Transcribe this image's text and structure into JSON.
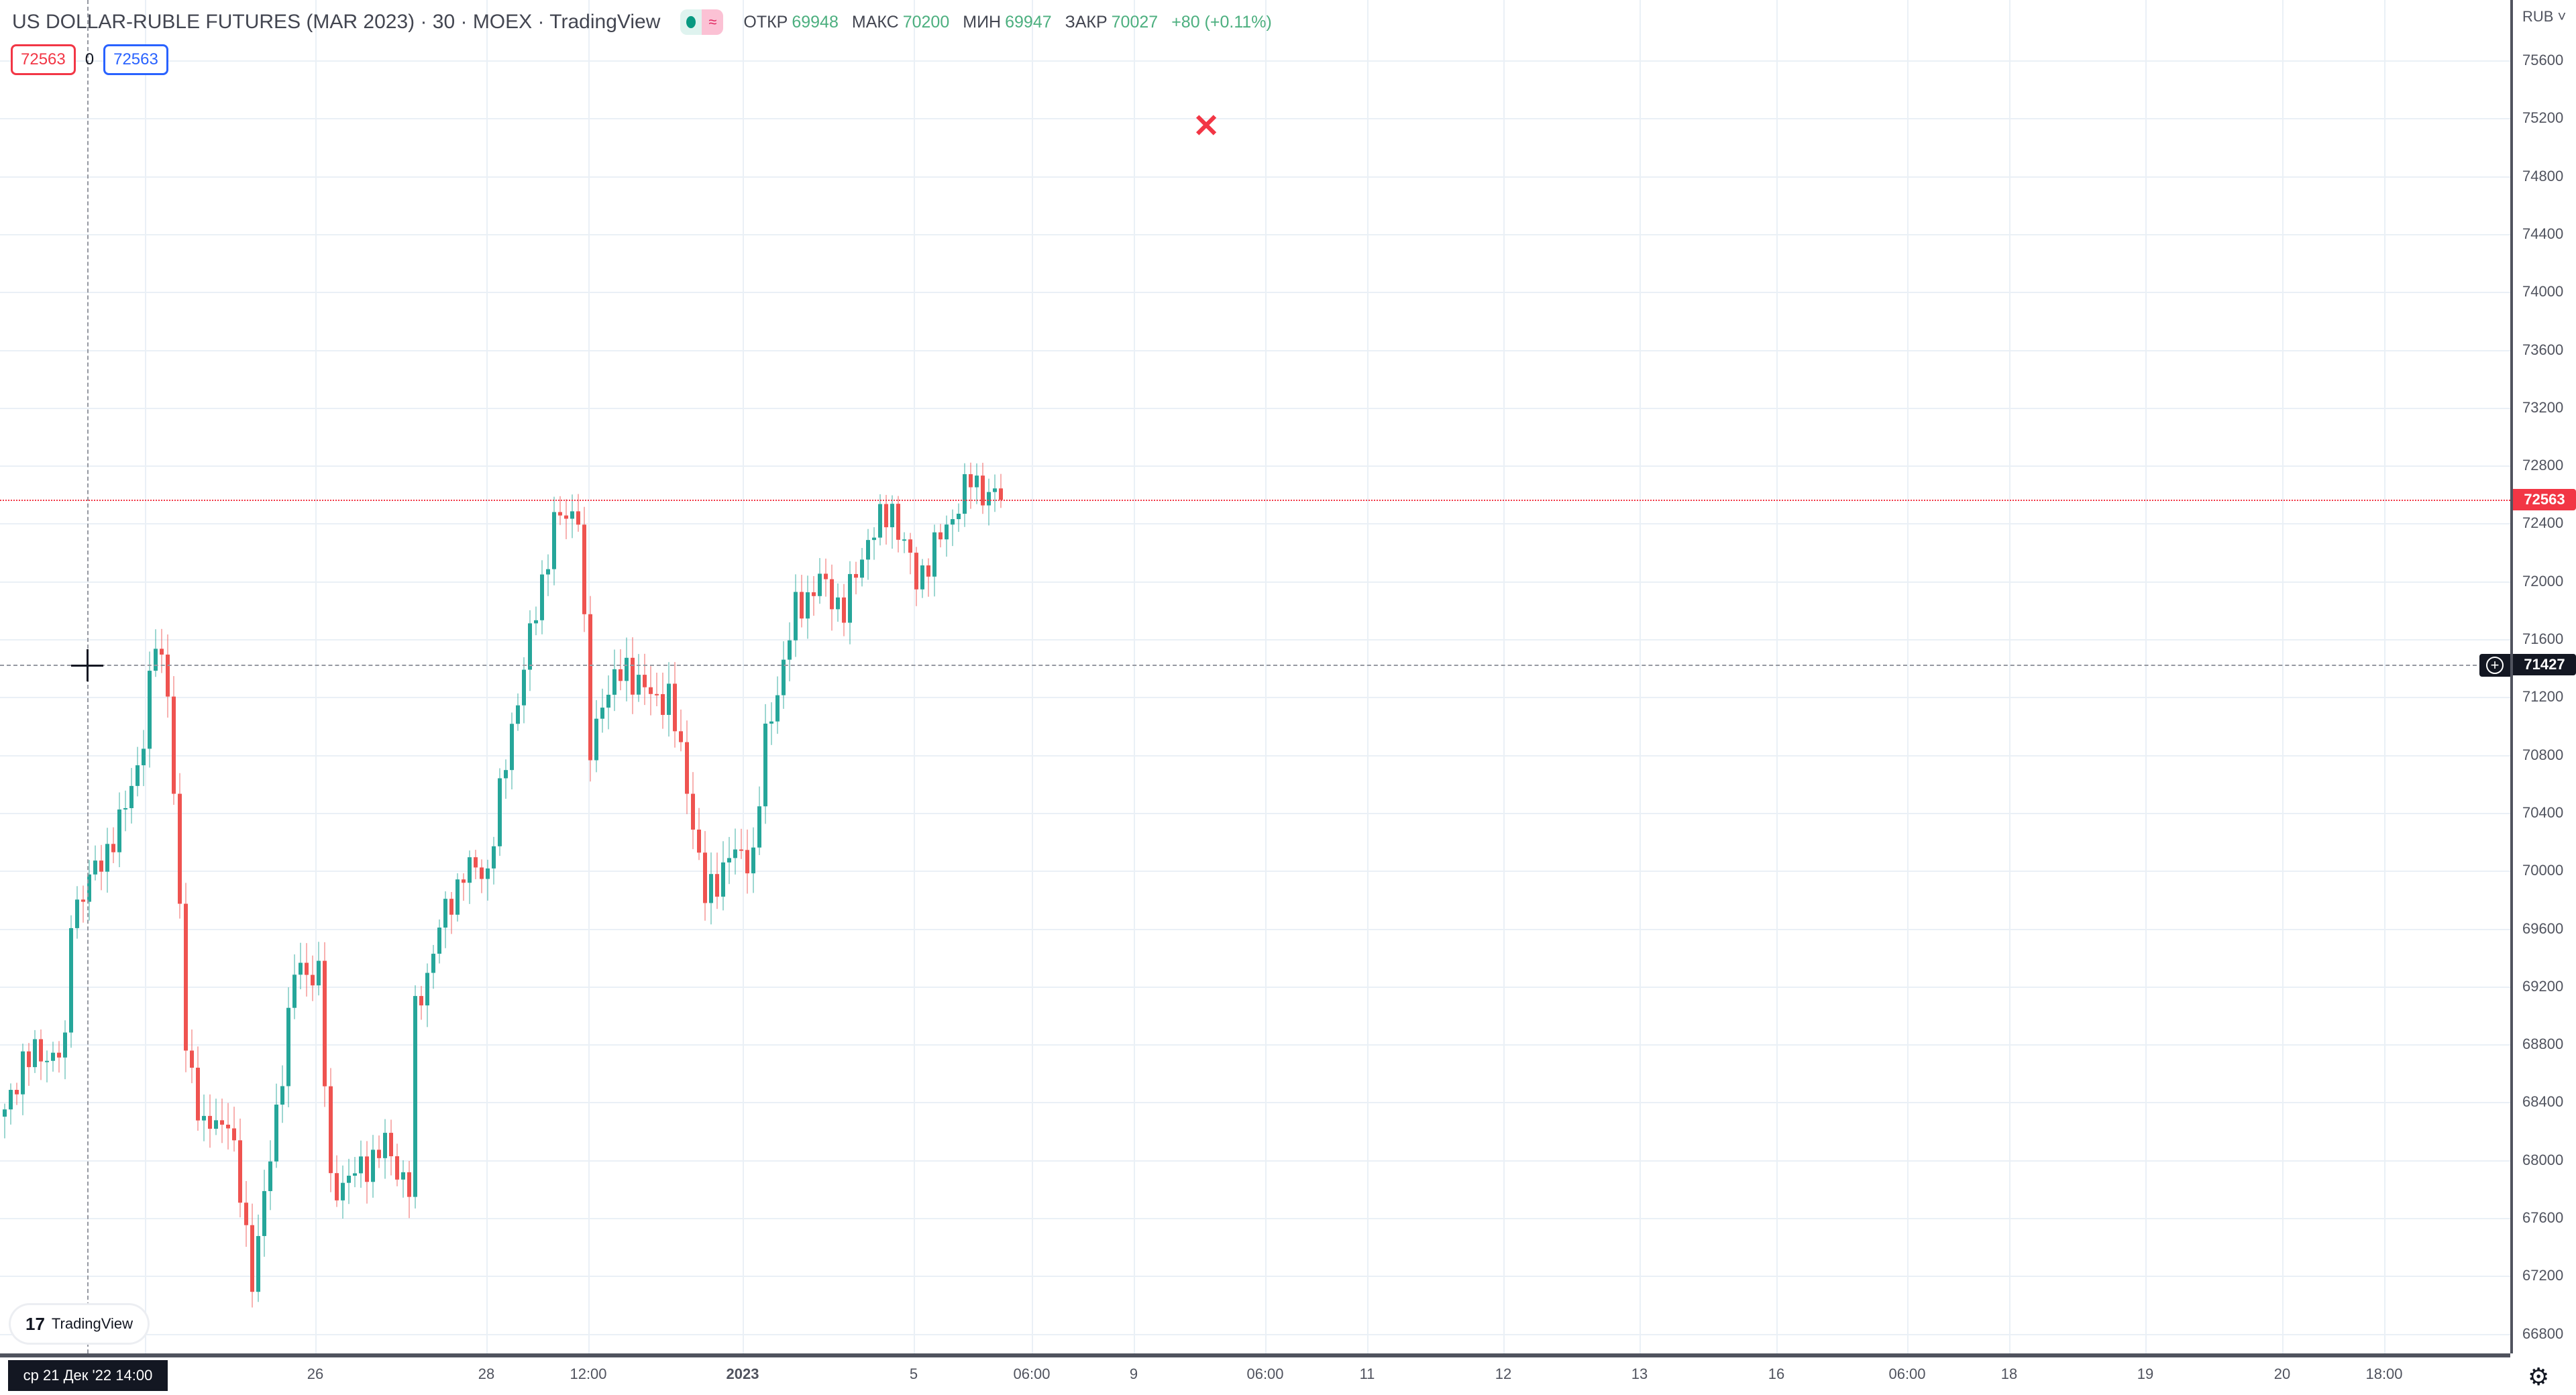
{
  "header": {
    "title": "US DOLLAR-RUBLE FUTURES (MAR 2023) · 30 · MOEX · TradingView",
    "status_icon": "market-open-dot",
    "delay_icon": "wave-icon",
    "delay_glyph": "≈",
    "ohlc": [
      {
        "label": "ОТКР",
        "value": "69948"
      },
      {
        "label": "МАКС",
        "value": "70200"
      },
      {
        "label": "МИН",
        "value": "69947"
      },
      {
        "label": "ЗАКР",
        "value": "70027"
      }
    ],
    "change": "+80 (+0.11%)"
  },
  "badges": {
    "sell": "72563",
    "spread": "0",
    "buy": "72563"
  },
  "price_axis": {
    "currency": "RUB ˅",
    "labels": [
      "75600",
      "75200",
      "74800",
      "74400",
      "74000",
      "73600",
      "73200",
      "72800",
      "72400",
      "72000",
      "71600",
      "71200",
      "70800",
      "70400",
      "70000",
      "69600",
      "69200",
      "68800",
      "68400",
      "68000",
      "67600",
      "67200",
      "66800"
    ],
    "last_price": "72563",
    "crosshair_price": "71427"
  },
  "time_axis": {
    "crosshair_date": "ср 21 Дек '22   14:00",
    "labels": [
      "26",
      "28",
      "12:00",
      "2023",
      "5",
      "06:00",
      "9",
      "06:00",
      "11",
      "12",
      "13",
      "16",
      "06:00",
      "18",
      "19",
      "20",
      "18:00"
    ]
  },
  "logo": {
    "text": "TradingView"
  },
  "colors": {
    "up": "#26a69a",
    "down": "#ef5350",
    "last_price": "#f23645",
    "crosshair": "#131722",
    "buy": "#2962ff"
  },
  "chart_data": {
    "type": "candlestick",
    "symbol": "US DOLLAR-RUBLE FUTURES (MAR 2023)",
    "interval": "30",
    "ylim": [
      66600,
      75800
    ],
    "last_close": 72563,
    "close_path": [
      [
        0,
        68300
      ],
      [
        3,
        68700
      ],
      [
        10,
        68750
      ],
      [
        11,
        69700
      ],
      [
        15,
        70000
      ],
      [
        19,
        70300
      ],
      [
        23,
        70900
      ],
      [
        25,
        71600
      ],
      [
        27,
        71300
      ],
      [
        29,
        69700
      ],
      [
        30,
        68800
      ],
      [
        33,
        68200
      ],
      [
        37,
        68300
      ],
      [
        41,
        67200
      ],
      [
        44,
        68000
      ],
      [
        48,
        69300
      ],
      [
        52,
        69300
      ],
      [
        54,
        67800
      ],
      [
        58,
        67900
      ],
      [
        63,
        68100
      ],
      [
        67,
        67800
      ],
      [
        68,
        69000
      ],
      [
        72,
        69600
      ],
      [
        76,
        70000
      ],
      [
        80,
        70000
      ],
      [
        84,
        71000
      ],
      [
        87,
        71600
      ],
      [
        91,
        72400
      ],
      [
        95,
        72500
      ],
      [
        97,
        70800
      ],
      [
        99,
        71200
      ],
      [
        103,
        71400
      ],
      [
        107,
        71200
      ],
      [
        110,
        71200
      ],
      [
        113,
        70600
      ],
      [
        116,
        69800
      ],
      [
        120,
        70100
      ],
      [
        124,
        70100
      ],
      [
        126,
        70900
      ],
      [
        131,
        71800
      ],
      [
        135,
        72000
      ],
      [
        139,
        71800
      ],
      [
        143,
        72300
      ],
      [
        147,
        72500
      ],
      [
        151,
        72000
      ],
      [
        155,
        72300
      ],
      [
        160,
        72700
      ],
      [
        163,
        72600
      ],
      [
        165,
        72563
      ]
    ]
  }
}
